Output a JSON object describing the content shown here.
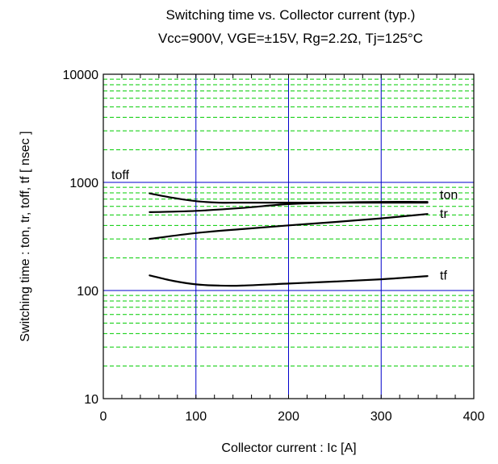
{
  "chart_data": {
    "type": "line",
    "title": "Switching time  vs.  Collector current  (typ.)",
    "subtitle": "Vcc=900V, VGE=±15V, Rg=2.2Ω, Tj=125°C",
    "xlabel": "Collector current : Ic [A]",
    "ylabel": "Switching time  :  ton, tr, toff, tf  [ nsec ]",
    "xlim": [
      0,
      400
    ],
    "ylim": [
      10,
      10000
    ],
    "y_scale": "log",
    "x_ticks": [
      "0",
      "100",
      "200",
      "300",
      "400"
    ],
    "y_ticks": [
      "10",
      "100",
      "1000",
      "10000"
    ],
    "grid": true,
    "legend": "inline labels at right end of curves",
    "colors": {
      "major_grid": "#0000cc",
      "minor_grid": "#00cc00",
      "curve": "#000000"
    },
    "series": [
      {
        "name": "toff",
        "x": [
          50,
          75,
          100,
          125,
          150,
          200,
          250,
          300,
          350
        ],
        "y": [
          790,
          720,
          670,
          650,
          650,
          650,
          650,
          650,
          650
        ]
      },
      {
        "name": "ton",
        "x": [
          50,
          100,
          150,
          200,
          250,
          300,
          350
        ],
        "y": [
          530,
          545,
          580,
          630,
          650,
          660,
          660
        ]
      },
      {
        "name": "tr",
        "x": [
          50,
          100,
          150,
          200,
          250,
          300,
          350
        ],
        "y": [
          300,
          340,
          370,
          400,
          430,
          465,
          510
        ]
      },
      {
        "name": "tf",
        "x": [
          50,
          75,
          100,
          125,
          150,
          200,
          250,
          300,
          350
        ],
        "y": [
          138,
          123,
          114,
          111,
          111,
          116,
          121,
          127,
          136
        ]
      }
    ]
  }
}
